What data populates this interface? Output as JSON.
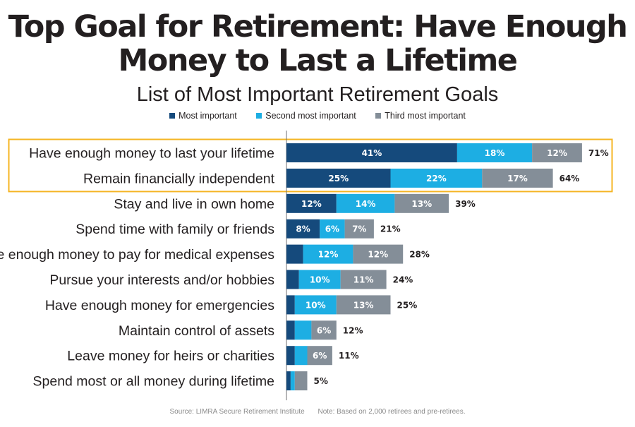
{
  "title_line1": "Top Goal for Retirement: Have Enough",
  "title_line2": "Money to Last a Lifetime",
  "subtitle": "List of Most Important Retirement Goals",
  "source": "Source: LIMRA Secure Retirement Institute",
  "note": "Note: Based on 2,000 retirees and pre-retirees.",
  "colors": {
    "most": "#154a7c",
    "second": "#1daee3",
    "third": "#848e98",
    "highlight": "#f5b523",
    "text": "#231f20"
  },
  "chart_data": {
    "type": "bar",
    "orientation": "horizontal",
    "stacked": true,
    "title": "Top Goal for Retirement: Have Enough Money to Last a Lifetime",
    "subtitle": "List of Most Important Retirement Goals",
    "legend_position": "top",
    "grid": false,
    "categories": [
      "Have enough money to last your lifetime",
      "Remain financially independent",
      "Stay and live in own home",
      "Spend time with family or friends",
      "Have enough money to pay for medical expenses",
      "Pursue your interests and/or hobbies",
      "Have enough money for emergencies",
      "Maintain control of assets",
      "Leave money for heirs or charities",
      "Spend most or all money during lifetime"
    ],
    "series": [
      {
        "name": "Most important",
        "values": [
          41,
          25,
          12,
          8,
          4,
          3,
          2,
          2,
          2,
          1
        ],
        "labels": [
          "41%",
          "25%",
          "12%",
          "8%",
          "",
          "",
          "",
          "",
          "",
          ""
        ]
      },
      {
        "name": "Second most important",
        "values": [
          18,
          22,
          14,
          6,
          12,
          10,
          10,
          4,
          3,
          1
        ],
        "labels": [
          "18%",
          "22%",
          "14%",
          "6%",
          "12%",
          "10%",
          "10%",
          "",
          "",
          ""
        ]
      },
      {
        "name": "Third most important",
        "values": [
          12,
          17,
          13,
          7,
          12,
          11,
          13,
          6,
          6,
          3
        ],
        "labels": [
          "12%",
          "17%",
          "13%",
          "7%",
          "12%",
          "11%",
          "13%",
          "6%",
          "6%",
          ""
        ]
      }
    ],
    "totals": [
      "71%",
      "64%",
      "39%",
      "21%",
      "28%",
      "24%",
      "25%",
      "12%",
      "11%",
      "5%"
    ],
    "highlighted_rows": [
      0,
      1
    ]
  }
}
